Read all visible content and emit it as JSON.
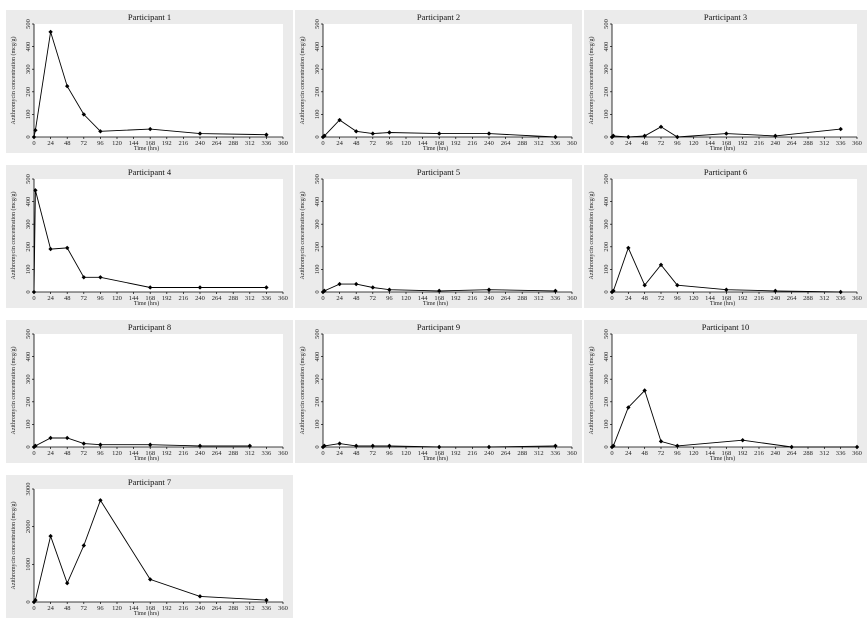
{
  "chart_data": [
    {
      "type": "line",
      "title": "Participant 1",
      "xlabel": "Time (hrs)",
      "ylabel": "Azithromycin concentration (mcg/g)",
      "xticks": [
        0,
        24,
        48,
        72,
        96,
        120,
        144,
        168,
        192,
        216,
        240,
        264,
        288,
        312,
        336,
        360
      ],
      "xlim": [
        0,
        360
      ],
      "yticks": [
        0,
        100,
        200,
        300,
        400,
        500
      ],
      "ylim": [
        0,
        500
      ],
      "series": [
        {
          "x": [
            0,
            2,
            24,
            48,
            72,
            96,
            168,
            240,
            336
          ],
          "y": [
            0,
            30,
            465,
            225,
            100,
            25,
            35,
            15,
            10
          ]
        }
      ]
    },
    {
      "type": "line",
      "title": "Participant 2",
      "xlabel": "Time (hrs)",
      "ylabel": "Azithromycin concentration (mcg/g)",
      "xticks": [
        0,
        24,
        48,
        72,
        96,
        120,
        144,
        168,
        192,
        216,
        240,
        264,
        288,
        312,
        336,
        360
      ],
      "xlim": [
        0,
        360
      ],
      "yticks": [
        0,
        100,
        200,
        300,
        400,
        500
      ],
      "ylim": [
        0,
        500
      ],
      "series": [
        {
          "x": [
            0,
            2,
            24,
            48,
            72,
            96,
            168,
            240,
            336
          ],
          "y": [
            0,
            5,
            75,
            25,
            15,
            20,
            15,
            15,
            0
          ]
        }
      ]
    },
    {
      "type": "line",
      "title": "Participant 3",
      "xlabel": "Time (hrs)",
      "ylabel": "Azithromycin concentration (mcg/g)",
      "xticks": [
        0,
        24,
        48,
        72,
        96,
        120,
        144,
        168,
        192,
        216,
        240,
        264,
        288,
        312,
        336,
        360
      ],
      "xlim": [
        0,
        360
      ],
      "yticks": [
        0,
        100,
        200,
        300,
        400,
        500
      ],
      "ylim": [
        0,
        500
      ],
      "series": [
        {
          "x": [
            0,
            2,
            24,
            48,
            72,
            96,
            168,
            240,
            336
          ],
          "y": [
            0,
            5,
            0,
            5,
            45,
            0,
            15,
            5,
            35
          ]
        }
      ]
    },
    {
      "type": "line",
      "title": "Participant 4",
      "xlabel": "Time (hrs)",
      "ylabel": "Azithromycin concentration (mcg/g)",
      "xticks": [
        0,
        24,
        48,
        72,
        96,
        120,
        144,
        168,
        192,
        216,
        240,
        264,
        288,
        312,
        336,
        360
      ],
      "xlim": [
        0,
        360
      ],
      "yticks": [
        0,
        100,
        200,
        300,
        400,
        500
      ],
      "ylim": [
        0,
        500
      ],
      "series": [
        {
          "x": [
            0,
            2,
            24,
            48,
            72,
            96,
            168,
            240,
            336
          ],
          "y": [
            0,
            450,
            190,
            195,
            65,
            65,
            20,
            20,
            20
          ]
        }
      ]
    },
    {
      "type": "line",
      "title": "Participant 5",
      "xlabel": "Time (hrs)",
      "ylabel": "Azithromycin concentration (mcg/g)",
      "xticks": [
        0,
        24,
        48,
        72,
        96,
        120,
        144,
        168,
        192,
        216,
        240,
        264,
        288,
        312,
        336,
        360
      ],
      "xlim": [
        0,
        360
      ],
      "yticks": [
        0,
        100,
        200,
        300,
        400,
        500
      ],
      "ylim": [
        0,
        500
      ],
      "series": [
        {
          "x": [
            0,
            2,
            24,
            48,
            72,
            96,
            168,
            240,
            336
          ],
          "y": [
            0,
            5,
            35,
            35,
            20,
            10,
            5,
            10,
            5
          ]
        }
      ]
    },
    {
      "type": "line",
      "title": "Participant 6",
      "xlabel": "Time (hrs)",
      "ylabel": "Azithromycin concentration (mcg/g)",
      "xticks": [
        0,
        24,
        48,
        72,
        96,
        120,
        144,
        168,
        192,
        216,
        240,
        264,
        288,
        312,
        336,
        360
      ],
      "xlim": [
        0,
        360
      ],
      "yticks": [
        0,
        100,
        200,
        300,
        400,
        500
      ],
      "ylim": [
        0,
        500
      ],
      "series": [
        {
          "x": [
            0,
            2,
            24,
            48,
            72,
            96,
            168,
            240,
            336
          ],
          "y": [
            0,
            5,
            195,
            30,
            120,
            30,
            10,
            5,
            0
          ]
        }
      ]
    },
    {
      "type": "line",
      "title": "Participant 8",
      "xlabel": "Time (hrs)",
      "ylabel": "Azithromycin concentration (mcg/g)",
      "xticks": [
        0,
        24,
        48,
        72,
        96,
        120,
        144,
        168,
        192,
        216,
        240,
        264,
        288,
        312,
        336,
        360
      ],
      "xlim": [
        0,
        360
      ],
      "yticks": [
        0,
        100,
        200,
        300,
        400,
        500
      ],
      "ylim": [
        0,
        500
      ],
      "series": [
        {
          "x": [
            0,
            2,
            24,
            48,
            72,
            96,
            168,
            240,
            312
          ],
          "y": [
            0,
            5,
            40,
            40,
            15,
            10,
            10,
            5,
            5
          ]
        }
      ]
    },
    {
      "type": "line",
      "title": "Participant 9",
      "xlabel": "Time (hrs)",
      "ylabel": "Azithromycin concentration (mcg/g)",
      "xticks": [
        0,
        24,
        48,
        72,
        96,
        120,
        144,
        168,
        192,
        216,
        240,
        264,
        288,
        312,
        336,
        360
      ],
      "xlim": [
        0,
        360
      ],
      "yticks": [
        0,
        100,
        200,
        300,
        400,
        500
      ],
      "ylim": [
        0,
        500
      ],
      "series": [
        {
          "x": [
            0,
            2,
            24,
            48,
            72,
            96,
            168,
            240,
            336
          ],
          "y": [
            0,
            5,
            15,
            5,
            5,
            5,
            0,
            0,
            5
          ]
        }
      ]
    },
    {
      "type": "line",
      "title": "Participant 10",
      "xlabel": "Time (hrs)",
      "ylabel": "Azithromycin concentration (mcg/g)",
      "xticks": [
        0,
        24,
        48,
        72,
        96,
        120,
        144,
        168,
        192,
        216,
        240,
        264,
        288,
        312,
        336,
        360
      ],
      "xlim": [
        0,
        360
      ],
      "yticks": [
        0,
        100,
        200,
        300,
        400,
        500
      ],
      "ylim": [
        0,
        500
      ],
      "series": [
        {
          "x": [
            0,
            2,
            24,
            48,
            72,
            96,
            192,
            264,
            360
          ],
          "y": [
            0,
            5,
            175,
            250,
            25,
            5,
            30,
            0,
            0
          ]
        }
      ]
    },
    {
      "type": "line",
      "title": "Participant 7",
      "xlabel": "Time (hrs)",
      "ylabel": "Azithromycin concentration (mcg/g)",
      "xticks": [
        0,
        24,
        48,
        72,
        96,
        120,
        144,
        168,
        192,
        216,
        240,
        264,
        288,
        312,
        336,
        360
      ],
      "xlim": [
        0,
        360
      ],
      "yticks": [
        0,
        1000,
        2000,
        3000
      ],
      "ylim": [
        0,
        3000
      ],
      "series": [
        {
          "x": [
            0,
            2,
            24,
            48,
            72,
            96,
            168,
            240,
            336
          ],
          "y": [
            0,
            50,
            1750,
            500,
            1500,
            2700,
            600,
            150,
            50
          ]
        }
      ]
    }
  ]
}
